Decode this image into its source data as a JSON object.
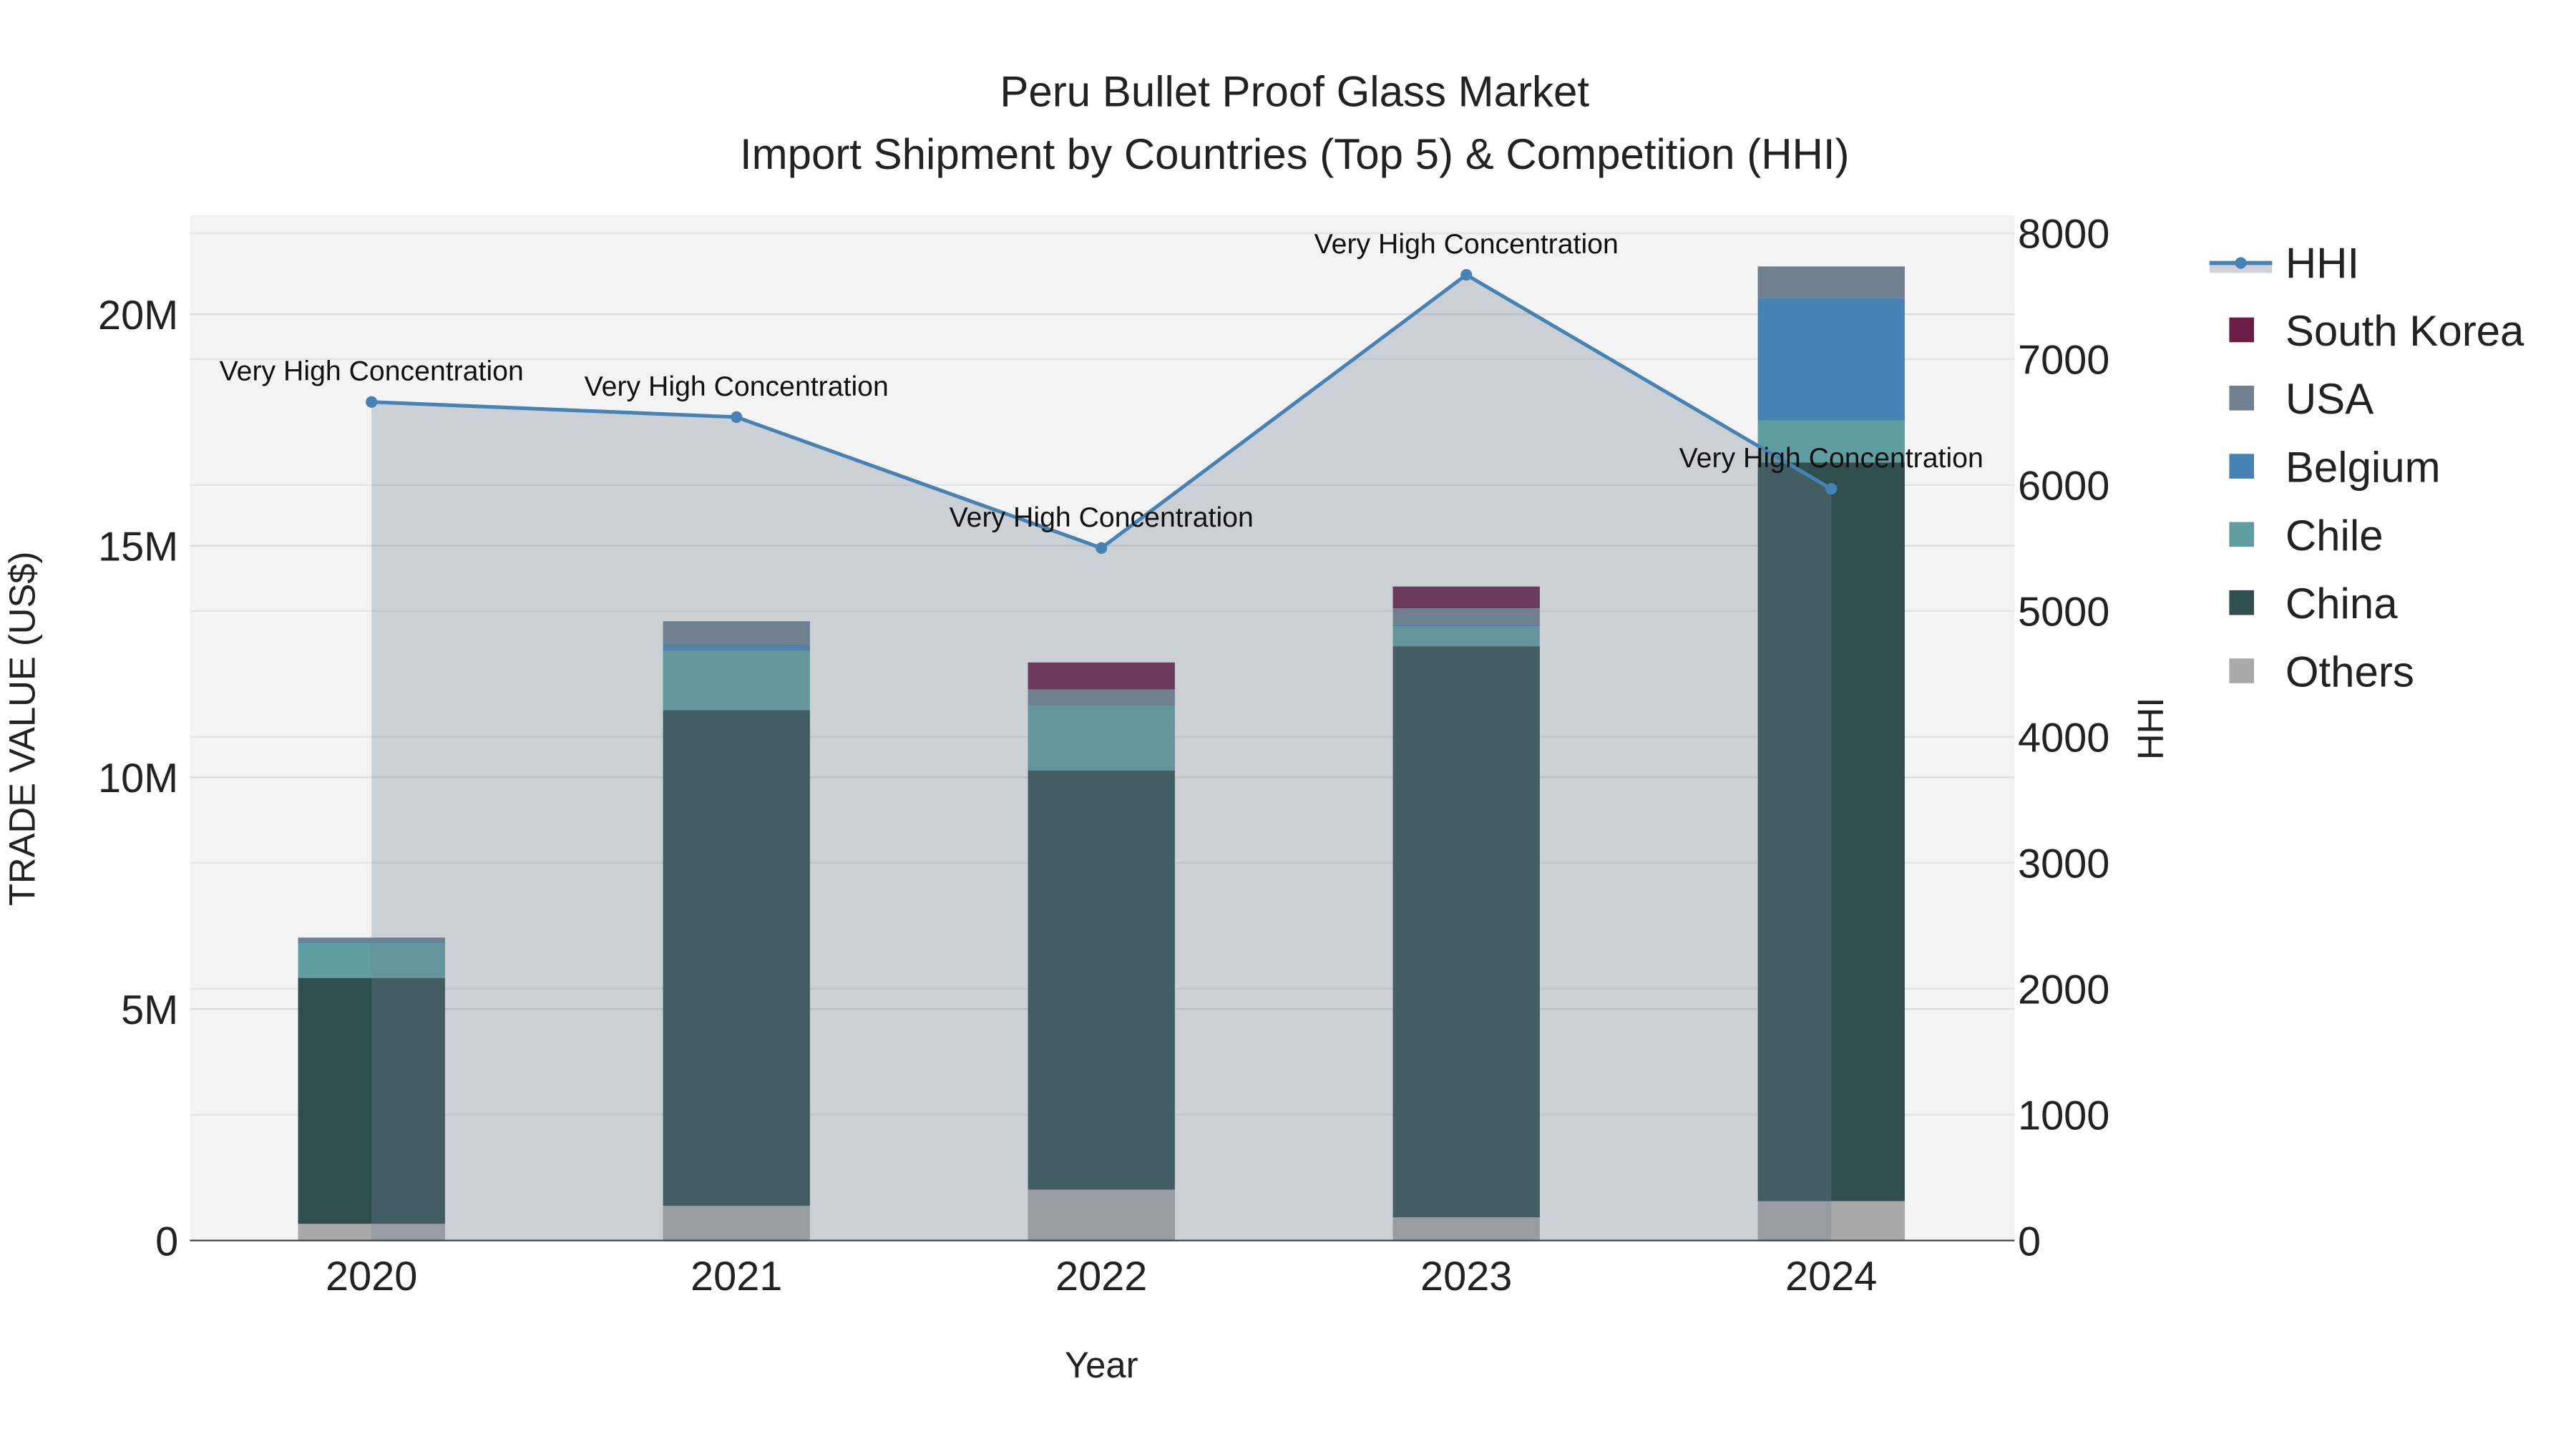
{
  "chart_data": {
    "type": "bar",
    "title": "Peru Bullet Proof Glass Market",
    "subtitle": "Import Shipment by Countries (Top 5) & Competition (HHI)",
    "xlabel": "Year",
    "ylabel": "TRADE VALUE (US$)",
    "y2label": "HHI",
    "categories": [
      "2020",
      "2021",
      "2022",
      "2023",
      "2024"
    ],
    "ylim": [
      0,
      22000000
    ],
    "y_ticks": [
      0,
      5000000,
      10000000,
      15000000,
      20000000
    ],
    "y_tick_labels": [
      "0",
      "5M",
      "10M",
      "15M",
      "20M"
    ],
    "y2lim": [
      0,
      8000
    ],
    "y2_ticks": [
      0,
      1000,
      2000,
      3000,
      4000,
      5000,
      6000,
      7000,
      8000
    ],
    "y2_tick_labels": [
      "0",
      "1000",
      "2000",
      "3000",
      "4000",
      "5000",
      "6000",
      "7000",
      "8000"
    ],
    "stacked": true,
    "grid": true,
    "legend_position": "right",
    "series": [
      {
        "name": "Others",
        "color": "#a9a9a9",
        "values": [
          360000,
          750000,
          1100000,
          500000,
          850000
        ]
      },
      {
        "name": "China",
        "color": "#2f4f4f",
        "values": [
          5310000,
          10700000,
          9050000,
          12330000,
          15950000
        ]
      },
      {
        "name": "Chile",
        "color": "#5f9ea0",
        "values": [
          750000,
          1280000,
          1400000,
          430000,
          900000
        ]
      },
      {
        "name": "Belgium",
        "color": "#4682b4",
        "values": [
          30000,
          140000,
          0,
          40000,
          2650000
        ]
      },
      {
        "name": "USA",
        "color": "#708090",
        "values": [
          90000,
          500000,
          350000,
          350000,
          680000
        ]
      },
      {
        "name": "South Korea",
        "color": "#6b1d45",
        "values": [
          0,
          0,
          580000,
          470000,
          0
        ]
      }
    ],
    "line_series": {
      "name": "HHI",
      "color": "#4682b4",
      "values": [
        6660,
        6540,
        5500,
        7670,
        5970
      ],
      "annotations": [
        "Very High Concentration",
        "Very High Concentration",
        "Very High Concentration",
        "Very High Concentration",
        "Very High Concentration"
      ]
    },
    "legend": [
      "HHI",
      "South Korea",
      "USA",
      "Belgium",
      "Chile",
      "China",
      "Others"
    ]
  }
}
